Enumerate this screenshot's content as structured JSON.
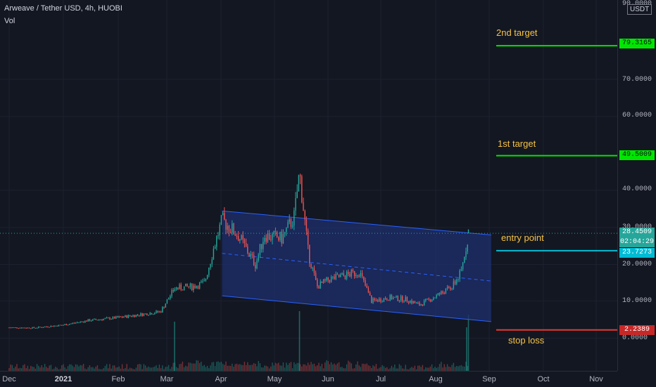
{
  "header": {
    "symbol_line": "Arweave / Tether USD, 4h, HUOBI",
    "indicator": "Vol"
  },
  "price_axis": {
    "unit": "USDT",
    "top_label": "90.0000",
    "labels": [
      "70.0000",
      "60.0000",
      "40.0000",
      "20.0000",
      "10.0000",
      "0.0000"
    ],
    "hidden_label": "30.0000"
  },
  "price_tags": {
    "target2": "79.3165",
    "target1": "49.5009",
    "current_price": "28.4509",
    "countdown": "02:04:29",
    "entry": "23.7273",
    "stop": "2.2389"
  },
  "annotations": {
    "target2": "2nd target",
    "target1": "1st target",
    "entry": "entry point",
    "stop": "stop loss"
  },
  "time_axis": [
    "Dec",
    "2021",
    "Feb",
    "Mar",
    "Apr",
    "May",
    "Jun",
    "Jul",
    "Aug",
    "Sep",
    "Oct",
    "Nov"
  ],
  "colors": {
    "background": "#131722",
    "up": "#26a69a",
    "down": "#ef5350",
    "channel": "#2962ff",
    "target_line": "#00e600",
    "entry_line": "#00bcd4",
    "stop_line": "#e53935",
    "annotation_text": "#f6c343"
  },
  "chart_data": {
    "type": "candlestick",
    "symbol": "Arweave / Tether USD",
    "interval": "4h",
    "exchange": "HUOBI",
    "last_price": 28.4509,
    "levels": {
      "2nd target": 79.3165,
      "1st target": 49.5009,
      "entry point": 23.7273,
      "stop loss": 2.2389
    },
    "close_path": [
      [
        "2020-12-01",
        2.9
      ],
      [
        "2020-12-15",
        2.8
      ],
      [
        "2021-01-01",
        3.6
      ],
      [
        "2021-01-15",
        4.8
      ],
      [
        "2021-02-01",
        5.6
      ],
      [
        "2021-02-15",
        6.5
      ],
      [
        "2021-02-25",
        7.2
      ],
      [
        "2021-03-05",
        13.5
      ],
      [
        "2021-03-15",
        14.0
      ],
      [
        "2021-03-22",
        15.0
      ],
      [
        "2021-03-27",
        24.0
      ],
      [
        "2021-04-01",
        32.0
      ],
      [
        "2021-04-10",
        28.0
      ],
      [
        "2021-04-20",
        20.0
      ],
      [
        "2021-04-25",
        28.0
      ],
      [
        "2021-05-05",
        27.0
      ],
      [
        "2021-05-12",
        33.0
      ],
      [
        "2021-05-15",
        45.0
      ],
      [
        "2021-05-20",
        23.0
      ],
      [
        "2021-05-25",
        14.0
      ],
      [
        "2021-06-01",
        16.0
      ],
      [
        "2021-06-10",
        17.0
      ],
      [
        "2021-06-18",
        18.0
      ],
      [
        "2021-06-25",
        10.0
      ],
      [
        "2021-07-05",
        11.0
      ],
      [
        "2021-07-15",
        10.5
      ],
      [
        "2021-07-22",
        9.0
      ],
      [
        "2021-08-01",
        11.5
      ],
      [
        "2021-08-10",
        14.0
      ],
      [
        "2021-08-15",
        18.0
      ],
      [
        "2021-08-19",
        28.45
      ]
    ],
    "channel": {
      "upper": [
        [
          "2021-04-01",
          34.5
        ],
        [
          "2021-09-01",
          28.0
        ]
      ],
      "middle": [
        [
          "2021-04-01",
          23.0
        ],
        [
          "2021-09-01",
          15.5
        ]
      ],
      "lower": [
        [
          "2021-04-01",
          11.5
        ],
        [
          "2021-09-01",
          4.5
        ]
      ]
    }
  }
}
